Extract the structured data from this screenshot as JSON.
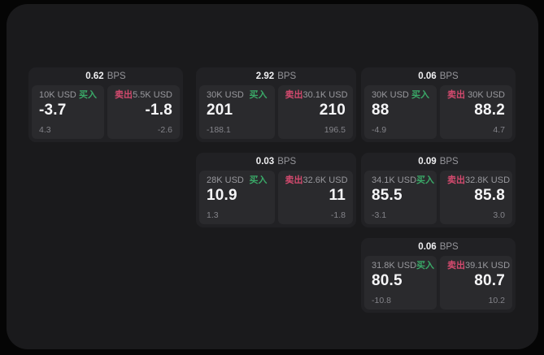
{
  "theme": {
    "page_bg": "#050505",
    "panel_bg": "#1a1a1c",
    "card_bg": "#212124",
    "tile_bg": "#2a2a2d",
    "green": "#3aa968",
    "red": "#d34a6e"
  },
  "labels": {
    "bps": "BPS",
    "buy": "买入",
    "sell": "卖出"
  },
  "cards": [
    {
      "bps": "0.62",
      "col": 1,
      "row": 1,
      "buy": {
        "amount": "10K USD",
        "value": "-3.7",
        "delta": "4.3"
      },
      "sell": {
        "amount": "5.5K USD",
        "value": "-1.8",
        "delta": "-2.6"
      }
    },
    {
      "bps": "2.92",
      "col": 2,
      "row": 1,
      "buy": {
        "amount": "30K USD",
        "value": "201",
        "delta": "-188.1"
      },
      "sell": {
        "amount": "30.1K USD",
        "value": "210",
        "delta": "196.5"
      }
    },
    {
      "bps": "0.06",
      "col": 3,
      "row": 1,
      "buy": {
        "amount": "30K USD",
        "value": "88",
        "delta": "-4.9"
      },
      "sell": {
        "amount": "30K USD",
        "value": "88.2",
        "delta": "4.7"
      }
    },
    {
      "bps": "0.03",
      "col": 2,
      "row": 2,
      "buy": {
        "amount": "28K USD",
        "value": "10.9",
        "delta": "1.3"
      },
      "sell": {
        "amount": "32.6K USD",
        "value": "11",
        "delta": "-1.8"
      }
    },
    {
      "bps": "0.09",
      "col": 3,
      "row": 2,
      "buy": {
        "amount": "34.1K USD",
        "value": "85.5",
        "delta": "-3.1"
      },
      "sell": {
        "amount": "32.8K USD",
        "value": "85.8",
        "delta": "3.0"
      }
    },
    {
      "bps": "0.06",
      "col": 3,
      "row": 3,
      "buy": {
        "amount": "31.8K USD",
        "value": "80.5",
        "delta": "-10.8"
      },
      "sell": {
        "amount": "39.1K USD",
        "value": "80.7",
        "delta": "10.2"
      }
    }
  ]
}
